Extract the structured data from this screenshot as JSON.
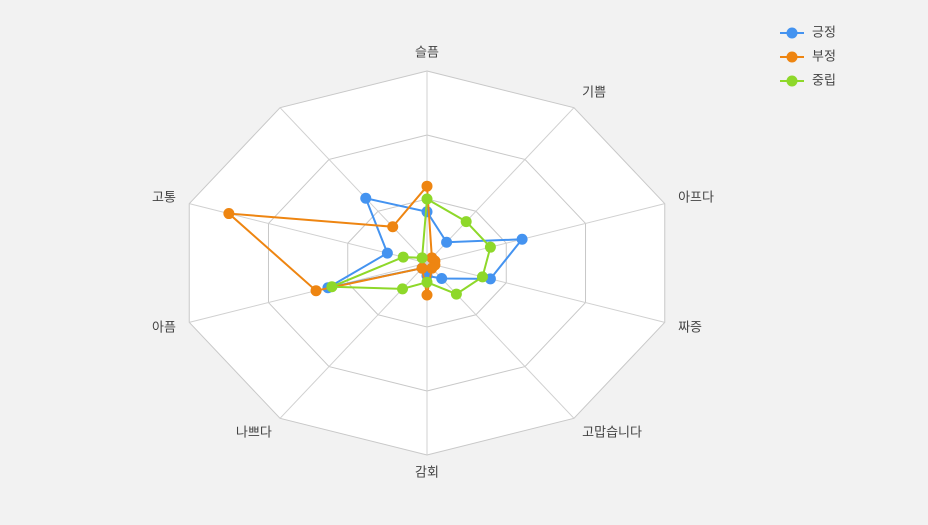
{
  "chart_data": {
    "type": "radar",
    "categories": [
      "슬픔",
      "기쁨",
      "아프다",
      "짜증",
      "고맙습니다",
      "감회",
      "나쁘다",
      "아픔",
      "고통",
      null
    ],
    "rlim": [
      0,
      3
    ],
    "rticks": [
      1,
      2,
      3
    ],
    "grid": true,
    "legend": "top-right",
    "series": [
      {
        "name": "긍정",
        "color": "#4493f0",
        "values": [
          0.8,
          0.4,
          1.2,
          0.8,
          0.3,
          0.2,
          0.1,
          1.25,
          0.5,
          1.25
        ]
      },
      {
        "name": "부정",
        "color": "#ee8511",
        "values": [
          1.2,
          0.1,
          0.1,
          0.1,
          0.1,
          0.5,
          0.1,
          1.4,
          2.5,
          0.7
        ]
      },
      {
        "name": "중립",
        "color": "#8ed82a",
        "values": [
          1.0,
          0.8,
          0.8,
          0.7,
          0.6,
          0.3,
          0.5,
          1.2,
          0.3,
          0.1
        ]
      }
    ]
  }
}
